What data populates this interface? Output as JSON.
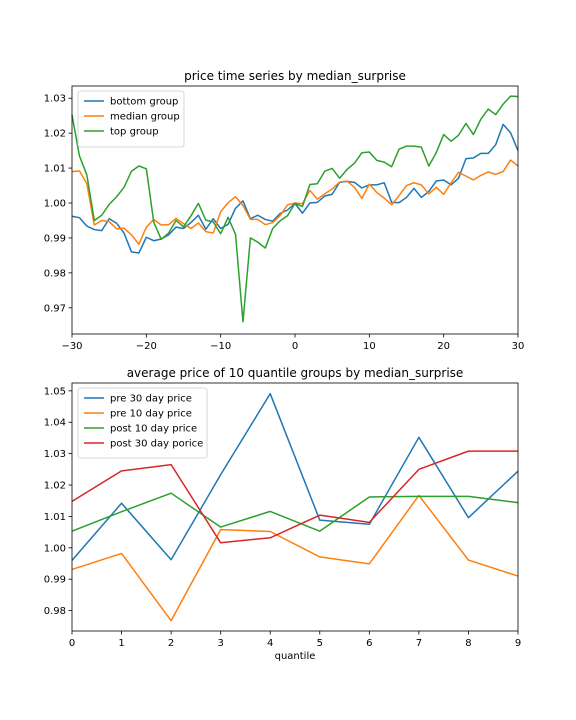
{
  "chart_data": [
    {
      "type": "line",
      "title": "price time series by median_surprise",
      "xlabel": "",
      "ylabel": "",
      "xlim": [
        -30,
        30
      ],
      "ylim": [
        0.9625,
        1.0335
      ],
      "xticks": [
        "−30",
        "−20",
        "−10",
        "0",
        "10",
        "20",
        "30"
      ],
      "yticks": [
        "0.97",
        "0.98",
        "0.99",
        "1.00",
        "1.01",
        "1.02",
        "1.03"
      ],
      "legend_position": "upper-left",
      "x": [
        -30,
        -29,
        -28,
        -27,
        -26,
        -25,
        -24,
        -23,
        -22,
        -21,
        -20,
        -19,
        -18,
        -17,
        -16,
        -15,
        -14,
        -13,
        -12,
        -11,
        -10,
        -9,
        -8,
        -7,
        -6,
        -5,
        -4,
        -3,
        -2,
        -1,
        0,
        1,
        2,
        3,
        4,
        5,
        6,
        7,
        8,
        9,
        10,
        11,
        12,
        13,
        14,
        15,
        16,
        17,
        18,
        19,
        20,
        21,
        22,
        23,
        24,
        25,
        26,
        27,
        28,
        29,
        30
      ],
      "series": [
        {
          "name": "bottom group",
          "color": "#1f77b4",
          "values": [
            0.9962,
            0.9958,
            0.9934,
            0.9924,
            0.9921,
            0.9955,
            0.9942,
            0.9914,
            0.986,
            0.9857,
            0.9902,
            0.9892,
            0.9897,
            0.9909,
            0.9931,
            0.9927,
            0.9944,
            0.9965,
            0.9925,
            0.9955,
            0.9927,
            0.9939,
            0.9985,
            1.0006,
            0.9955,
            0.9965,
            0.9953,
            0.9948,
            0.997,
            0.998,
            0.9999,
            0.9971,
            1.0,
            1.0002,
            1.002,
            1.0025,
            1.0059,
            1.0062,
            1.0059,
            1.0043,
            1.0052,
            1.0052,
            1.0058,
            1.0002,
            1.0001,
            1.0016,
            1.0042,
            1.0016,
            1.0033,
            1.0063,
            1.0066,
            1.0052,
            1.0071,
            1.0127,
            1.0129,
            1.0142,
            1.0142,
            1.0167,
            1.0225,
            1.0201,
            1.015
          ]
        },
        {
          "name": "median group",
          "color": "#ff7f0e",
          "values": [
            1.009,
            1.0092,
            1.0055,
            0.9937,
            0.995,
            0.9947,
            0.9926,
            0.9928,
            0.9909,
            0.9882,
            0.9931,
            0.9953,
            0.9937,
            0.9938,
            0.9956,
            0.9941,
            0.9927,
            0.9943,
            0.9918,
            0.9914,
            0.9975,
            1.0001,
            1.0018,
            0.9993,
            0.9953,
            0.9953,
            0.9938,
            0.9944,
            0.9964,
            0.9995,
            1.0,
            0.9998,
            1.0036,
            1.0011,
            1.0026,
            1.004,
            1.006,
            1.0063,
            1.0045,
            1.0013,
            1.0054,
            1.003,
            1.0014,
            0.9995,
            1.0021,
            1.005,
            1.0058,
            1.0052,
            1.0026,
            1.0045,
            1.0025,
            1.0058,
            1.0088,
            1.0077,
            1.0066,
            1.0079,
            1.0089,
            1.0082,
            1.009,
            1.0123,
            1.0106
          ]
        },
        {
          "name": "top group",
          "color": "#2ca02c",
          "values": [
            1.0252,
            1.0135,
            1.008,
            0.995,
            0.9965,
            0.9996,
            1.0018,
            1.0045,
            1.0091,
            1.0106,
            1.0098,
            0.9945,
            0.9896,
            0.9914,
            0.995,
            0.9932,
            0.9963,
            0.9999,
            0.9951,
            0.9946,
            0.9912,
            0.9959,
            0.991,
            0.966,
            0.99,
            0.9888,
            0.9871,
            0.9927,
            0.9949,
            0.9964,
            0.9999,
            0.999,
            1.0053,
            1.0055,
            1.0091,
            1.0099,
            1.0071,
            1.0096,
            1.0114,
            1.0144,
            1.0146,
            1.0122,
            1.0117,
            1.0104,
            1.0154,
            1.0163,
            1.0163,
            1.016,
            1.0106,
            1.0144,
            1.0196,
            1.0177,
            1.0194,
            1.0228,
            1.0196,
            1.024,
            1.0269,
            1.0253,
            1.0283,
            1.0306,
            1.0305
          ]
        }
      ]
    },
    {
      "type": "line",
      "title": "average price of 10 quantile groups by median_surprise",
      "xlabel": "quantile",
      "ylabel": "",
      "xlim": [
        0,
        9
      ],
      "ylim": [
        0.9735,
        1.0525
      ],
      "xticks": [
        "0",
        "1",
        "2",
        "3",
        "4",
        "5",
        "6",
        "7",
        "8",
        "9"
      ],
      "yticks": [
        "0.98",
        "0.99",
        "1.00",
        "1.01",
        "1.02",
        "1.03",
        "1.04",
        "1.05"
      ],
      "legend_position": "upper-left",
      "x": [
        0,
        1,
        2,
        3,
        4,
        5,
        6,
        7,
        8,
        9
      ],
      "series": [
        {
          "name": "pre 30 day price",
          "color": "#1f77b4",
          "values": [
            0.996,
            1.0142,
            0.9962,
            1.0233,
            1.0491,
            1.0088,
            1.0075,
            1.0352,
            1.0096,
            1.0244
          ]
        },
        {
          "name": "pre 10 day price",
          "color": "#ff7f0e",
          "values": [
            0.9931,
            0.9982,
            0.9768,
            1.0058,
            1.0052,
            0.9971,
            0.9949,
            1.0167,
            0.9961,
            0.991
          ]
        },
        {
          "name": "post 10 day price",
          "color": "#2ca02c",
          "values": [
            1.0053,
            1.0115,
            1.0174,
            1.0066,
            1.0116,
            1.0053,
            1.0162,
            1.0164,
            1.0164,
            1.0144
          ]
        },
        {
          "name": "post 30 day porice",
          "color": "#d62728",
          "values": [
            1.0148,
            1.0245,
            1.0265,
            1.0016,
            1.0032,
            1.0104,
            1.0081,
            1.025,
            1.0308,
            1.0308
          ]
        }
      ]
    }
  ]
}
